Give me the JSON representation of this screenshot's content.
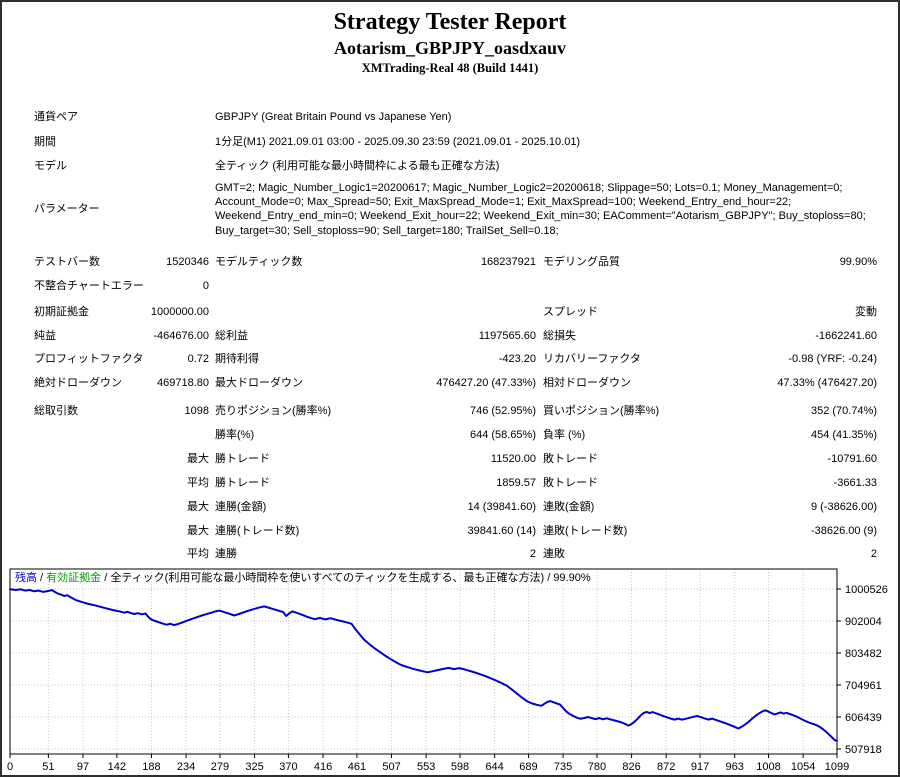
{
  "header": {
    "title": "Strategy Tester Report",
    "ea_name": "Aotarism_GBPJPY_oasdxauv",
    "server": "XMTrading-Real 48 (Build 1441)"
  },
  "report_rows": [
    {
      "type": "wide",
      "label": "通貨ペア",
      "value": "GBPJPY (Great Britain Pound vs Japanese Yen)"
    },
    {
      "type": "wide",
      "label": "期間",
      "value": "1分足(M1) 2021.09.01 03:00 - 2025.09.30 23:59 (2021.09.01 - 2025.10.01)"
    },
    {
      "type": "wide",
      "label": "モデル",
      "value": "全ティック (利用可能な最小時間枠による最も正確な方法)"
    },
    {
      "type": "param",
      "label": "パラメーター",
      "value": "GMT=2; Magic_Number_Logic1=20200617; Magic_Number_Logic2=20200618; Slippage=50; Lots=0.1; Money_Management=0; Account_Mode=0; Max_Spread=50; Exit_MaxSpread_Mode=1; Exit_MaxSpread=100; Weekend_Entry_end_hour=22; Weekend_Entry_end_min=0; Weekend_Exit_hour=22; Weekend_Exit_min=30; EAComment=\"Aotarism_GBPJPY\"; Buy_stoploss=80; Buy_target=30; Sell_stoploss=90; Sell_target=180; TrailSet_Sell=0.18;"
    },
    {
      "type": "six",
      "cells": [
        "テストバー数",
        "1520346",
        "モデルティック数",
        "168237921",
        "モデリング品質",
        "99.90%"
      ]
    },
    {
      "type": "six",
      "cells": [
        "不整合チャートエラー",
        "0",
        "",
        "",
        "",
        ""
      ]
    },
    {
      "type": "six",
      "cells": [
        "初期証拠金",
        "1000000.00",
        "",
        "",
        "スプレッド",
        "変動"
      ]
    },
    {
      "type": "six",
      "cells": [
        "純益",
        "-464676.00",
        "総利益",
        "1197565.60",
        "総損失",
        "-1662241.60"
      ]
    },
    {
      "type": "six",
      "cells": [
        "プロフィットファクタ",
        "0.72",
        "期待利得",
        "-423.20",
        "リカバリーファクタ",
        "-0.98 (YRF: -0.24)"
      ]
    },
    {
      "type": "six",
      "cells": [
        "絶対ドローダウン",
        "469718.80",
        "最大ドローダウン",
        "476427.20 (47.33%)",
        "相対ドローダウン",
        "47.33% (476427.20)"
      ]
    },
    {
      "type": "six",
      "cells": [
        "総取引数",
        "1098",
        "売りポジション(勝率%)",
        "746 (52.95%)",
        "買いポジション(勝率%)",
        "352 (70.74%)"
      ]
    },
    {
      "type": "six",
      "cells": [
        "",
        "",
        "勝率(%)",
        "644 (58.65%)",
        "負率 (%)",
        "454 (41.35%)"
      ]
    },
    {
      "type": "six",
      "cells": [
        "",
        "最大",
        "勝トレード",
        "11520.00",
        "敗トレード",
        "-10791.60"
      ]
    },
    {
      "type": "six",
      "cells": [
        "",
        "平均",
        "勝トレード",
        "1859.57",
        "敗トレード",
        "-3661.33"
      ]
    },
    {
      "type": "six",
      "cells": [
        "",
        "最大",
        "連勝(金額)",
        "14 (39841.60)",
        "連敗(金額)",
        "9 (-38626.00)"
      ]
    },
    {
      "type": "six",
      "cells": [
        "",
        "最大",
        "連勝(トレード数)",
        "39841.60 (14)",
        "連敗(トレード数)",
        "-38626.00 (9)"
      ]
    },
    {
      "type": "six",
      "cells": [
        "",
        "平均",
        "連勝",
        "2",
        "連敗",
        "2"
      ]
    }
  ],
  "chart_data": {
    "type": "line",
    "legend": [
      {
        "label": "残高",
        "color": "#0000C8"
      },
      {
        "label": "有効証拠金",
        "color": "#00A000"
      },
      {
        "label": "全ティック(利用可能な最小時間枠を使いすべてのティックを生成する、最も正確な方法)",
        "color": "#000000"
      },
      {
        "label": "99.90%",
        "color": "#000000"
      }
    ],
    "legend_separator": " / ",
    "line_color": "#0000C8",
    "grid_color": "#c9c9c9",
    "y_ticks": [
      1000526,
      902004,
      803482,
      704961,
      606439,
      507918
    ],
    "x_ticks": [
      0,
      51,
      97,
      142,
      188,
      234,
      279,
      325,
      370,
      416,
      461,
      507,
      553,
      598,
      644,
      689,
      735,
      780,
      826,
      872,
      917,
      963,
      1008,
      1054,
      1099
    ],
    "xlim": [
      0,
      1099
    ],
    "ylim": [
      507918,
      1000526
    ],
    "series": [
      {
        "name": "残高",
        "points": [
          [
            0,
            1000000
          ],
          [
            8,
            997500
          ],
          [
            14,
            999500
          ],
          [
            20,
            995500
          ],
          [
            26,
            997500
          ],
          [
            32,
            993500
          ],
          [
            38,
            995500
          ],
          [
            44,
            991500
          ],
          [
            50,
            994000
          ],
          [
            56,
            997000
          ],
          [
            60,
            991000
          ],
          [
            64,
            986000
          ],
          [
            68,
            983000
          ],
          [
            72,
            979000
          ],
          [
            76,
            981500
          ],
          [
            80,
            976000
          ],
          [
            84,
            971000
          ],
          [
            88,
            966000
          ],
          [
            92,
            963000
          ],
          [
            97,
            959500
          ],
          [
            102,
            956000
          ],
          [
            107,
            953000
          ],
          [
            112,
            950500
          ],
          [
            117,
            947500
          ],
          [
            122,
            944500
          ],
          [
            127,
            941500
          ],
          [
            132,
            938500
          ],
          [
            137,
            935500
          ],
          [
            142,
            933000
          ],
          [
            147,
            930500
          ],
          [
            152,
            927500
          ],
          [
            156,
            930500
          ],
          [
            160,
            926500
          ],
          [
            165,
            923500
          ],
          [
            170,
            926000
          ],
          [
            175,
            922500
          ],
          [
            180,
            925000
          ],
          [
            184,
            914000
          ],
          [
            188,
            906000
          ],
          [
            193,
            902000
          ],
          [
            198,
            898000
          ],
          [
            203,
            894000
          ],
          [
            208,
            890500
          ],
          [
            213,
            893500
          ],
          [
            218,
            889500
          ],
          [
            223,
            892500
          ],
          [
            228,
            896500
          ],
          [
            233,
            901000
          ],
          [
            238,
            905500
          ],
          [
            243,
            909500
          ],
          [
            248,
            913500
          ],
          [
            253,
            917500
          ],
          [
            258,
            921000
          ],
          [
            263,
            924500
          ],
          [
            268,
            928000
          ],
          [
            273,
            931500
          ],
          [
            278,
            934000
          ],
          [
            283,
            930500
          ],
          [
            288,
            927000
          ],
          [
            293,
            923000
          ],
          [
            298,
            919000
          ],
          [
            303,
            922500
          ],
          [
            308,
            926500
          ],
          [
            313,
            930500
          ],
          [
            318,
            934500
          ],
          [
            323,
            938000
          ],
          [
            328,
            941500
          ],
          [
            333,
            944500
          ],
          [
            338,
            947000
          ],
          [
            343,
            943500
          ],
          [
            348,
            940000
          ],
          [
            353,
            936500
          ],
          [
            358,
            933000
          ],
          [
            363,
            929500
          ],
          [
            367,
            917500
          ],
          [
            371,
            925500
          ],
          [
            375,
            931500
          ],
          [
            380,
            928000
          ],
          [
            385,
            924000
          ],
          [
            390,
            919500
          ],
          [
            395,
            915000
          ],
          [
            400,
            911000
          ],
          [
            405,
            907500
          ],
          [
            412,
            911500
          ],
          [
            419,
            907000
          ],
          [
            426,
            910500
          ],
          [
            433,
            906000
          ],
          [
            440,
            902000
          ],
          [
            447,
            898000
          ],
          [
            454,
            893500
          ],
          [
            458,
            880000
          ],
          [
            462,
            868000
          ],
          [
            466,
            857000
          ],
          [
            470,
            846000
          ],
          [
            475,
            836000
          ],
          [
            480,
            826000
          ],
          [
            485,
            817000
          ],
          [
            490,
            809000
          ],
          [
            495,
            801000
          ],
          [
            500,
            793000
          ],
          [
            505,
            786000
          ],
          [
            510,
            779000
          ],
          [
            515,
            772500
          ],
          [
            520,
            766500
          ],
          [
            527,
            761000
          ],
          [
            534,
            756000
          ],
          [
            541,
            751500
          ],
          [
            548,
            747500
          ],
          [
            555,
            744000
          ],
          [
            562,
            747500
          ],
          [
            569,
            751000
          ],
          [
            576,
            754500
          ],
          [
            583,
            757500
          ],
          [
            590,
            754000
          ],
          [
            597,
            757000
          ],
          [
            604,
            753000
          ],
          [
            611,
            748500
          ],
          [
            618,
            743500
          ],
          [
            625,
            738000
          ],
          [
            632,
            732000
          ],
          [
            639,
            725500
          ],
          [
            646,
            718500
          ],
          [
            653,
            711000
          ],
          [
            660,
            703000
          ],
          [
            667,
            691000
          ],
          [
            674,
            678000
          ],
          [
            681,
            665000
          ],
          [
            688,
            654000
          ],
          [
            694,
            648000
          ],
          [
            700,
            644000
          ],
          [
            706,
            641000
          ],
          [
            710,
            647000
          ],
          [
            714,
            652500
          ],
          [
            718,
            655500
          ],
          [
            722,
            652000
          ],
          [
            726,
            648500
          ],
          [
            731,
            644500
          ],
          [
            735,
            634000
          ],
          [
            739,
            624000
          ],
          [
            743,
            616500
          ],
          [
            748,
            610000
          ],
          [
            753,
            604500
          ],
          [
            758,
            601000
          ],
          [
            763,
            603500
          ],
          [
            768,
            606500
          ],
          [
            773,
            603000
          ],
          [
            778,
            600000
          ],
          [
            783,
            603000
          ],
          [
            788,
            599500
          ],
          [
            793,
            602500
          ],
          [
            798,
            599000
          ],
          [
            803,
            596000
          ],
          [
            808,
            593000
          ],
          [
            813,
            589500
          ],
          [
            818,
            584500
          ],
          [
            822,
            580000
          ],
          [
            826,
            585000
          ],
          [
            830,
            592000
          ],
          [
            834,
            601000
          ],
          [
            838,
            611000
          ],
          [
            842,
            618500
          ],
          [
            846,
            622000
          ],
          [
            850,
            618500
          ],
          [
            854,
            621500
          ],
          [
            858,
            618000
          ],
          [
            863,
            614000
          ],
          [
            868,
            609500
          ],
          [
            873,
            605500
          ],
          [
            878,
            601500
          ],
          [
            883,
            598500
          ],
          [
            888,
            601500
          ],
          [
            893,
            598000
          ],
          [
            898,
            601000
          ],
          [
            903,
            604000
          ],
          [
            908,
            607000
          ],
          [
            913,
            609500
          ],
          [
            918,
            606000
          ],
          [
            923,
            602000
          ],
          [
            928,
            598500
          ],
          [
            933,
            601500
          ],
          [
            938,
            597500
          ],
          [
            943,
            593500
          ],
          [
            948,
            589500
          ],
          [
            953,
            585500
          ],
          [
            958,
            581000
          ],
          [
            963,
            576000
          ],
          [
            968,
            571000
          ],
          [
            972,
            576000
          ],
          [
            976,
            582000
          ],
          [
            980,
            589000
          ],
          [
            984,
            597000
          ],
          [
            988,
            605000
          ],
          [
            992,
            612000
          ],
          [
            996,
            618500
          ],
          [
            1000,
            624000
          ],
          [
            1004,
            627000
          ],
          [
            1008,
            623000
          ],
          [
            1012,
            618500
          ],
          [
            1016,
            614500
          ],
          [
            1020,
            617500
          ],
          [
            1024,
            620500
          ],
          [
            1028,
            617000
          ],
          [
            1032,
            619500
          ],
          [
            1036,
            616000
          ],
          [
            1040,
            612500
          ],
          [
            1044,
            609000
          ],
          [
            1048,
            604500
          ],
          [
            1052,
            600000
          ],
          [
            1056,
            595500
          ],
          [
            1060,
            591000
          ],
          [
            1064,
            587500
          ],
          [
            1068,
            584500
          ],
          [
            1072,
            581000
          ],
          [
            1076,
            576000
          ],
          [
            1080,
            569500
          ],
          [
            1084,
            562000
          ],
          [
            1088,
            553500
          ],
          [
            1092,
            544500
          ],
          [
            1095,
            537500
          ],
          [
            1097,
            534000
          ],
          [
            1099,
            533500
          ]
        ]
      }
    ]
  }
}
